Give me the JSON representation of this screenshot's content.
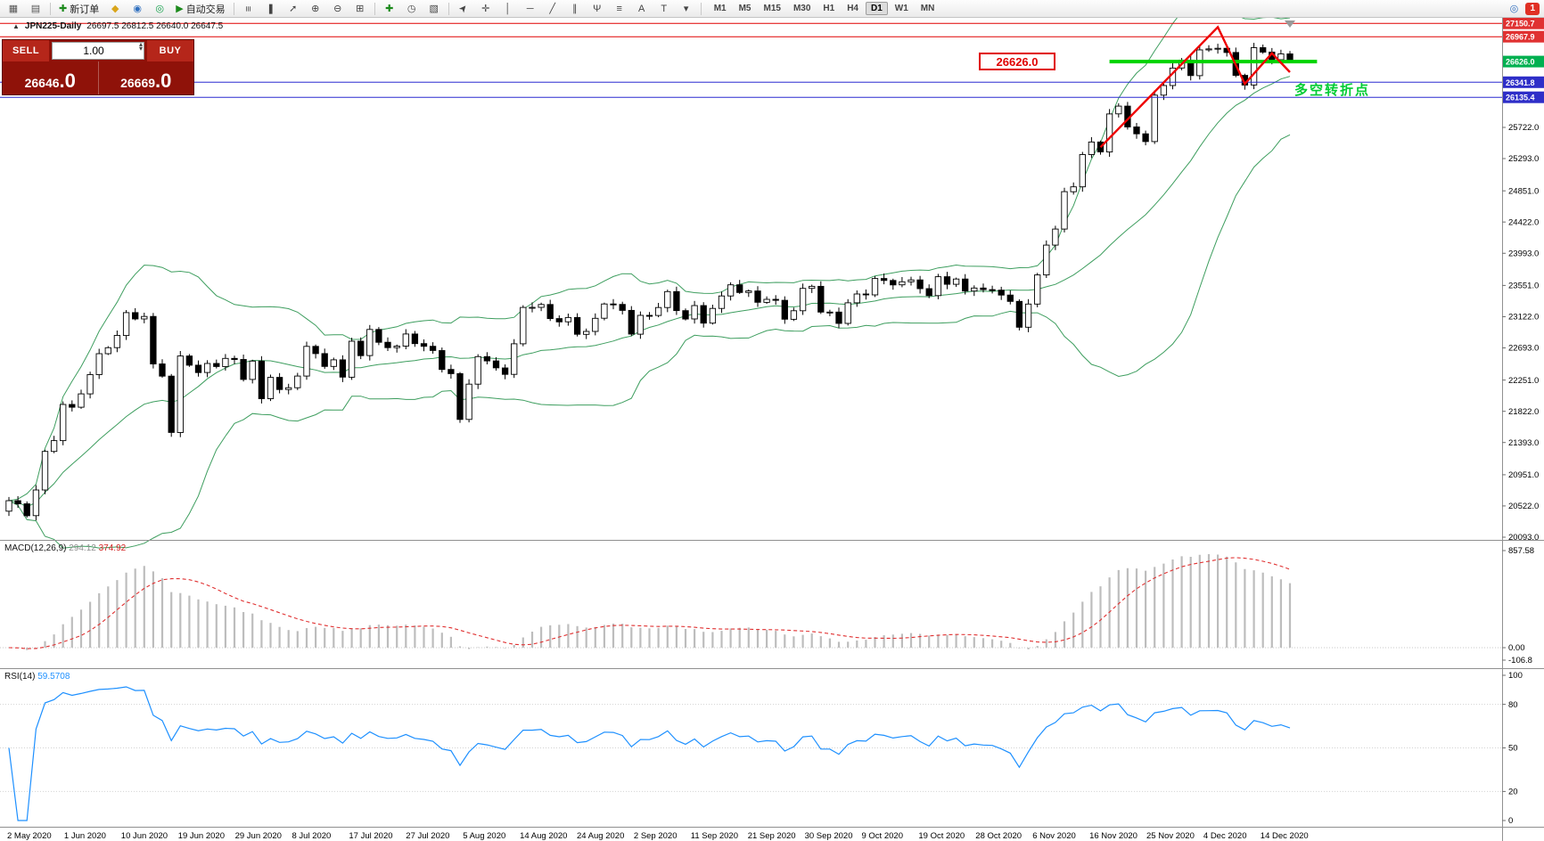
{
  "toolbar": {
    "icons": {
      "new_chart": "▦",
      "profiles": "▤",
      "new_order_plus": "✚",
      "metaeditor": "◆",
      "history_center": "◉",
      "strategy_tester": "◎",
      "autotrade_play": "▶",
      "bar_chart": "≡",
      "candle_chart": "❚",
      "line_chart": "➚",
      "zoom_in": "⊕",
      "zoom_out": "⊖",
      "grid": "⊞",
      "indicators": "✚",
      "periods": "◷",
      "templates": "▧",
      "cursor": "➤",
      "crosshair": "✛",
      "vline": "│",
      "hline": "─",
      "trendline": "╱",
      "channel": "∥",
      "pitchfork": "Ψ",
      "fibonacci": "≡",
      "text_tool": "A",
      "label_tool": "T",
      "arrows": "▾",
      "search": "◎"
    },
    "new_order_label": "新订单",
    "autotrading_label": "自动交易",
    "timeframes": [
      "M1",
      "M5",
      "M15",
      "M30",
      "H1",
      "H4",
      "D1",
      "W1",
      "MN"
    ],
    "active_timeframe": "D1",
    "notification_count": "1"
  },
  "chart": {
    "collapse_icon": "▲",
    "symbol_title": "JPN225-Daily",
    "ohlc": "26697.5 26812.5 26640.0 26647.5",
    "annotation_label": "26626.0",
    "annotation_cn": "多空转折点"
  },
  "trade_panel": {
    "sell_label": "SELL",
    "buy_label": "BUY",
    "volume": "1.00",
    "spin_up": "▴",
    "spin_down": "▾",
    "sell_price_main": "26646",
    "sell_price_frac": ".0",
    "buy_price_main": "26669",
    "buy_price_frac": ".0"
  },
  "macd": {
    "label": "MACD(12,26,9)",
    "value1": "294.12",
    "value2": "374.92",
    "axis": [
      "857.58",
      "0.00",
      "-106.8"
    ]
  },
  "rsi": {
    "label": "RSI(14)",
    "value": "59.5708",
    "axis": [
      "100",
      "80",
      "50",
      "20",
      "0"
    ]
  },
  "chart_data": {
    "type": "candlestick",
    "symbol": "JPN225",
    "timeframe": "Daily",
    "y_range": [
      20056,
      27227
    ],
    "first_open": 20450,
    "closes": [
      20595,
      20552,
      20388,
      20741,
      21271,
      21419,
      21916,
      21878,
      22062,
      22326,
      22614,
      22696,
      22864,
      23178,
      23091,
      23125,
      22473,
      22305,
      21531,
      22582,
      22456,
      22355,
      22479,
      22437,
      22549,
      22534,
      22260,
      22512,
      21995,
      22288,
      22122,
      22146,
      22306,
      22714,
      22615,
      22439,
      22529,
      22291,
      22785,
      22587,
      22946,
      22770,
      22696,
      22717,
      22884,
      22752,
      22715,
      22657,
      22397,
      22339,
      21710,
      22195,
      22573,
      22514,
      22418,
      22330,
      22750,
      23249,
      23250,
      23289,
      23096,
      23051,
      23110,
      22880,
      22920,
      23100,
      23296,
      23290,
      23208,
      22882,
      23140,
      23138,
      23247,
      23466,
      23205,
      23090,
      23274,
      23033,
      23235,
      23406,
      23559,
      23454,
      23475,
      23319,
      23360,
      23346,
      23087,
      23204,
      23511,
      23539,
      23185,
      23185,
      23029,
      23312,
      23433,
      23422,
      23647,
      23620,
      23559,
      23601,
      23627,
      23507,
      23411,
      23671,
      23567,
      23639,
      23474,
      23516,
      23494,
      23486,
      23419,
      23332,
      22977,
      23295,
      23695,
      24105,
      24325,
      24839,
      24906,
      25349,
      25521,
      25385,
      25907,
      26014,
      25728,
      25634,
      25527,
      26165,
      26297,
      26537,
      26644,
      26433,
      26787,
      26800,
      26809,
      26751,
      26437,
      26304,
      26817,
      26756,
      26652,
      26732,
      26648
    ],
    "x_labels": [
      "2 May 2020",
      "1 Jun 2020",
      "10 Jun 2020",
      "19 Jun 2020",
      "29 Jun 2020",
      "8 Jul 2020",
      "17 Jul 2020",
      "27 Jul 2020",
      "5 Aug 2020",
      "14 Aug 2020",
      "24 Aug 2020",
      "2 Sep 2020",
      "11 Sep 2020",
      "21 Sep 2020",
      "30 Sep 2020",
      "9 Oct 2020",
      "19 Oct 2020",
      "28 Oct 2020",
      "6 Nov 2020",
      "16 Nov 2020",
      "25 Nov 2020",
      "4 Dec 2020",
      "14 Dec 2020"
    ],
    "y_axis_labels": [
      "25722.0",
      "25293.0",
      "24851.0",
      "24422.0",
      "23993.0",
      "23551.0",
      "23122.0",
      "22693.0",
      "22251.0",
      "21822.0",
      "21393.0",
      "20951.0",
      "20522.0",
      "20093.0"
    ],
    "price_tags": [
      {
        "text": "27150.7",
        "price": 27150.7,
        "color": "#e03131"
      },
      {
        "text": "26967.9",
        "price": 26967.9,
        "color": "#e03131"
      },
      {
        "text": "26626.0",
        "price": 26626.0,
        "color": "#00b050"
      },
      {
        "text": "26341.8",
        "price": 26341.8,
        "color": "#2e2ec8"
      },
      {
        "text": "26135.4",
        "price": 26135.4,
        "color": "#2e2ec8"
      }
    ],
    "levels": [
      {
        "price": 27150.7,
        "color": "#e00000",
        "width": 1
      },
      {
        "price": 26967.9,
        "color": "#e00000",
        "width": 1
      },
      {
        "price": 26626.0,
        "color": "#00d400",
        "width": 4,
        "from_bar": 122,
        "to_bar": 145
      },
      {
        "price": 26341.8,
        "color": "#2b2bd0",
        "width": 1
      },
      {
        "price": 26135.4,
        "color": "#2b2bd0",
        "width": 1
      }
    ],
    "zigzag": {
      "color": "#ee0000",
      "points": [
        [
          121,
          25450
        ],
        [
          134,
          27100
        ],
        [
          137,
          26320
        ],
        [
          140,
          26740
        ],
        [
          142,
          26480
        ]
      ]
    },
    "bollinger": {
      "period": 20,
      "deviation": 2,
      "color": "#3e9e5f"
    },
    "macd_params": {
      "fast": 12,
      "slow": 26,
      "signal": 9,
      "histogram_color": "#bdbdbd",
      "signal_color": "#e03030"
    },
    "rsi_params": {
      "period": 14,
      "color": "#1e90ff",
      "levels": [
        80,
        50,
        20
      ]
    }
  }
}
